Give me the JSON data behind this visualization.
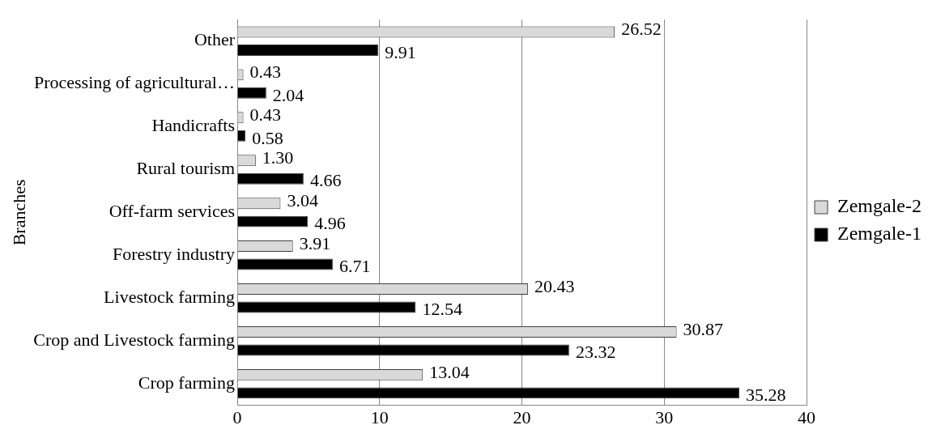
{
  "chart_data": {
    "type": "bar",
    "orientation": "horizontal",
    "ylabel": "Branches",
    "categories": [
      "Other",
      "Processing of agricultural…",
      "Handicrafts",
      "Rural tourism",
      "Off-farm services",
      "Forestry industry",
      "Livestock farming",
      "Crop and Livestock farming",
      "Crop farming"
    ],
    "series": [
      {
        "name": "Zemgale-2",
        "color": "#d9d9d9",
        "values": [
          26.52,
          0.43,
          0.43,
          1.3,
          3.04,
          3.91,
          20.43,
          30.87,
          13.04
        ],
        "value_labels": [
          "26.52",
          "0.43",
          "0.43",
          "1.30",
          "3.04",
          "3.91",
          "20.43",
          "30.87",
          "13.04"
        ]
      },
      {
        "name": "Zemgale-1",
        "color": "#000000",
        "values": [
          9.91,
          2.04,
          0.58,
          4.66,
          4.96,
          6.71,
          12.54,
          23.32,
          35.28
        ],
        "value_labels": [
          "9.91",
          "2.04",
          "0.58",
          "4.66",
          "4.96",
          "6.71",
          "12.54",
          "23.32",
          "35.28"
        ]
      }
    ],
    "xlim": [
      0,
      40
    ],
    "xticks": [
      0,
      10,
      20,
      30,
      40
    ],
    "grid": "x",
    "legend": "right"
  }
}
